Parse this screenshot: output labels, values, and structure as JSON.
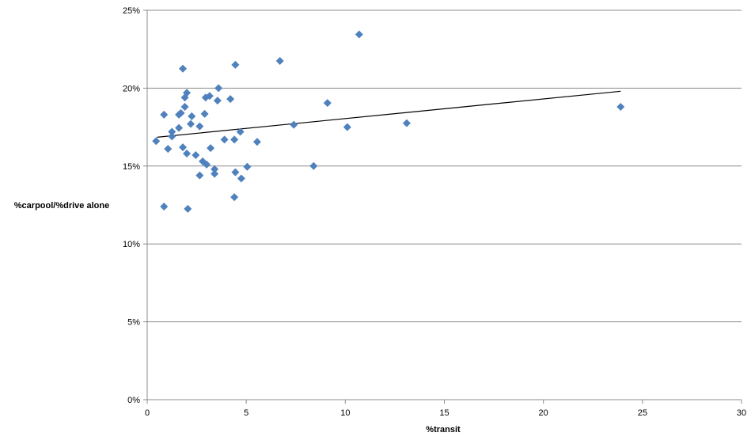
{
  "chart_data": {
    "type": "scatter",
    "title": "",
    "xlabel": "%transit",
    "ylabel": "%carpool/%drive  alone",
    "xlim": [
      0,
      30
    ],
    "ylim": [
      0,
      25
    ],
    "x_ticks": [
      0,
      5,
      10,
      15,
      20,
      25,
      30
    ],
    "y_ticks": [
      0,
      5,
      10,
      15,
      20,
      25
    ],
    "y_tick_labels": [
      "0%",
      "5%",
      "10%",
      "15%",
      "20%",
      "25%"
    ],
    "grid": "horizontal",
    "legend": "none",
    "marker": "diamond",
    "marker_color": "#4F81BD",
    "trendline": {
      "type": "linear",
      "x": [
        0.5,
        23.9
      ],
      "y": [
        16.85,
        19.8
      ],
      "color": "#000000"
    },
    "points": [
      [
        0.45,
        16.6
      ],
      [
        0.85,
        18.3
      ],
      [
        0.85,
        12.4
      ],
      [
        1.05,
        16.1
      ],
      [
        1.25,
        17.2
      ],
      [
        1.25,
        16.9
      ],
      [
        1.6,
        17.45
      ],
      [
        1.6,
        18.3
      ],
      [
        1.7,
        18.4
      ],
      [
        1.8,
        21.25
      ],
      [
        1.8,
        16.2
      ],
      [
        1.9,
        18.8
      ],
      [
        1.9,
        19.4
      ],
      [
        2.0,
        19.7
      ],
      [
        2.0,
        15.8
      ],
      [
        2.05,
        12.25
      ],
      [
        2.2,
        17.7
      ],
      [
        2.25,
        18.2
      ],
      [
        2.45,
        15.7
      ],
      [
        2.65,
        17.55
      ],
      [
        2.65,
        14.4
      ],
      [
        2.8,
        15.3
      ],
      [
        2.9,
        18.35
      ],
      [
        2.95,
        19.4
      ],
      [
        3.0,
        15.1
      ],
      [
        3.15,
        19.5
      ],
      [
        3.2,
        16.15
      ],
      [
        3.4,
        14.8
      ],
      [
        3.4,
        14.5
      ],
      [
        3.55,
        19.2
      ],
      [
        3.6,
        20.0
      ],
      [
        3.9,
        16.7
      ],
      [
        4.2,
        19.3
      ],
      [
        4.4,
        16.7
      ],
      [
        4.4,
        13.0
      ],
      [
        4.45,
        21.5
      ],
      [
        4.45,
        14.6
      ],
      [
        4.7,
        17.2
      ],
      [
        4.75,
        14.2
      ],
      [
        5.05,
        14.95
      ],
      [
        5.55,
        16.55
      ],
      [
        6.7,
        21.75
      ],
      [
        7.4,
        17.65
      ],
      [
        8.4,
        15.0
      ],
      [
        9.1,
        19.05
      ],
      [
        10.1,
        17.5
      ],
      [
        10.7,
        23.45
      ],
      [
        13.1,
        17.75
      ],
      [
        23.9,
        18.8
      ]
    ]
  }
}
